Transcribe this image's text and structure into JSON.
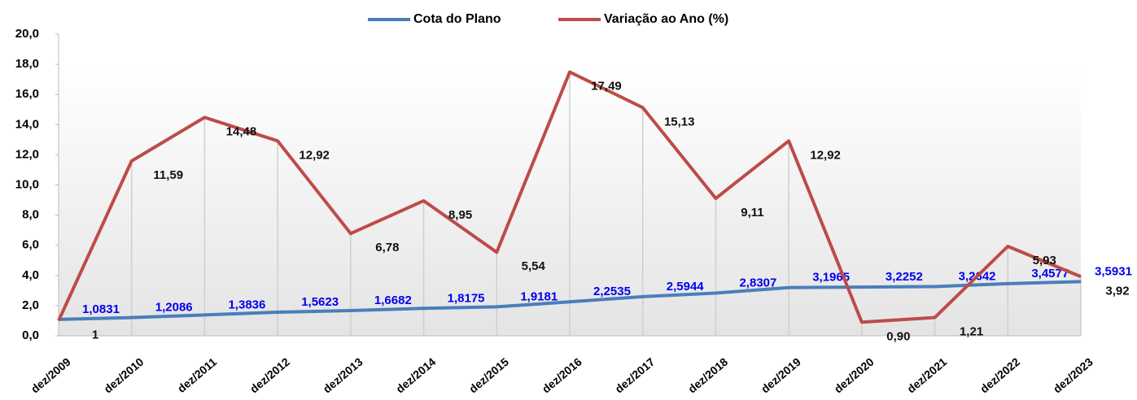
{
  "chart_data": {
    "type": "line",
    "categories": [
      "dez/2009",
      "dez/2010",
      "dez/2011",
      "dez/2012",
      "dez/2013",
      "dez/2014",
      "dez/2015",
      "dez/2016",
      "dez/2017",
      "dez/2018",
      "dez/2019",
      "dez/2020",
      "dez/2021",
      "dez/2022",
      "dez/2023"
    ],
    "series": [
      {
        "name": "Cota do Plano",
        "color": "#4a7ebb",
        "values": [
          1.0831,
          1.2086,
          1.3836,
          1.5623,
          1.6682,
          1.8175,
          1.9181,
          2.2535,
          2.5944,
          2.8307,
          3.1965,
          3.2252,
          3.2642,
          3.4577,
          3.5931
        ],
        "value_labels": [
          "1,0831",
          "1,2086",
          "1,3836",
          "1,5623",
          "1,6682",
          "1,8175",
          "1,9181",
          "2,2535",
          "2,5944",
          "2,8307",
          "3,1965",
          "3,2252",
          "3,2642",
          "3,4577",
          "3,5931"
        ]
      },
      {
        "name": "Variação ao Ano (%)",
        "color": "#be4b48",
        "values": [
          1,
          11.59,
          14.48,
          12.92,
          6.78,
          8.95,
          5.54,
          17.49,
          15.13,
          9.11,
          12.92,
          0.9,
          1.21,
          5.93,
          3.92
        ],
        "value_labels": [
          "1",
          "11,59",
          "14,48",
          "12,92",
          "6,78",
          "8,95",
          "5,54",
          "17,49",
          "15,13",
          "9,11",
          "12,92",
          "0,90",
          "1,21",
          "5,93",
          "3,92"
        ]
      }
    ],
    "ylim": [
      0,
      20
    ],
    "yticks": [
      {
        "value": 0,
        "label": "0,0"
      },
      {
        "value": 2,
        "label": "2,0"
      },
      {
        "value": 4,
        "label": "4,0"
      },
      {
        "value": 6,
        "label": "6,0"
      },
      {
        "value": 8,
        "label": "8,0"
      },
      {
        "value": 10,
        "label": "10,0"
      },
      {
        "value": 12,
        "label": "12,0"
      },
      {
        "value": 14,
        "label": "14,0"
      },
      {
        "value": 16,
        "label": "16,0"
      },
      {
        "value": 18,
        "label": "18,0"
      },
      {
        "value": 20,
        "label": "20,0"
      }
    ],
    "legend": "top"
  }
}
